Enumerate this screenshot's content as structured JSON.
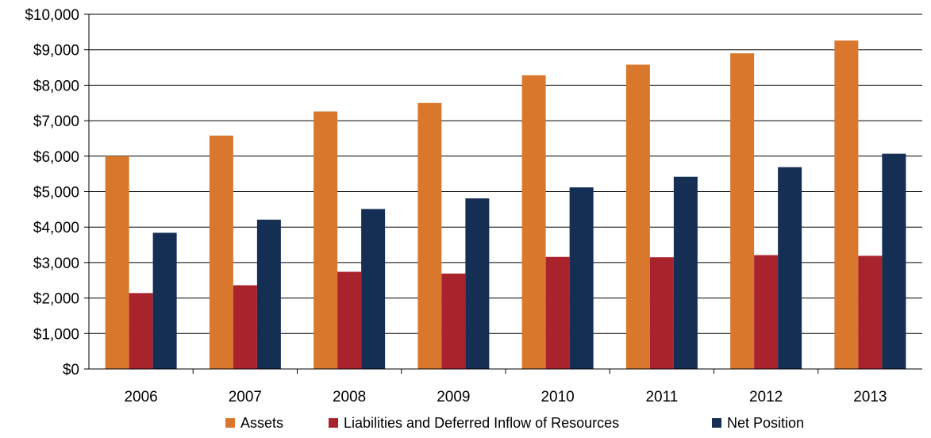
{
  "chart_data": {
    "type": "bar",
    "title": "",
    "xlabel": "",
    "ylabel": "",
    "categories": [
      "2006",
      "2007",
      "2008",
      "2009",
      "2010",
      "2011",
      "2012",
      "2013"
    ],
    "series": [
      {
        "name": "Assets",
        "color": "#D9782D",
        "values": [
          6000,
          6580,
          7260,
          7500,
          8280,
          8580,
          8900,
          9260
        ]
      },
      {
        "name": "Liabilities and Deferred Inflow of Resources",
        "color": "#A8232B",
        "values": [
          2140,
          2360,
          2740,
          2690,
          3160,
          3150,
          3210,
          3190
        ]
      },
      {
        "name": "Net Position",
        "color": "#152E53",
        "values": [
          3840,
          4210,
          4510,
          4810,
          5120,
          5420,
          5690,
          6070
        ]
      }
    ],
    "ylim": [
      0,
      10000
    ],
    "y_ticks": [
      0,
      1000,
      2000,
      3000,
      4000,
      5000,
      6000,
      7000,
      8000,
      9000,
      10000
    ],
    "y_tick_labels": [
      "$0",
      "$1,000",
      "$2,000",
      "$3,000",
      "$4,000",
      "$5,000",
      "$6,000",
      "$7,000",
      "$8,000",
      "$9,000",
      "$10,000"
    ],
    "grid": true,
    "legend_position": "bottom"
  }
}
